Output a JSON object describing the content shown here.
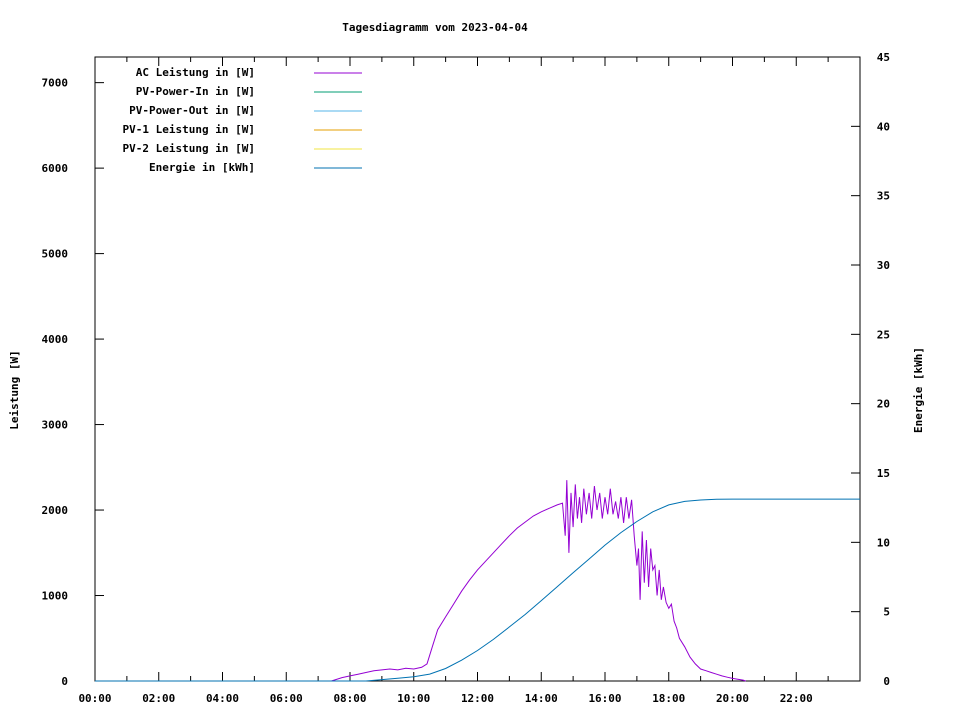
{
  "chart_data": {
    "type": "line",
    "title": "Tagesdiagramm vom 2023-04-04",
    "ylabel": "Leistung [W]",
    "y2label": "Energie [kWh]",
    "xlim": [
      "00:00",
      "24:00"
    ],
    "ylim": [
      0,
      7300
    ],
    "y2lim": [
      0,
      45
    ],
    "x_ticks": [
      "00:00",
      "02:00",
      "04:00",
      "06:00",
      "08:00",
      "10:00",
      "12:00",
      "14:00",
      "16:00",
      "18:00",
      "20:00",
      "22:00"
    ],
    "y_ticks": [
      0,
      1000,
      2000,
      3000,
      4000,
      5000,
      6000,
      7000
    ],
    "y2_ticks": [
      0,
      5,
      10,
      15,
      20,
      25,
      30,
      35,
      40,
      45
    ],
    "grid": false,
    "legend_position": "top-left",
    "series": [
      {
        "name": "AC Leistung in [W]",
        "color": "#9400d3",
        "axis": "left",
        "points": [
          [
            "07:25",
            0
          ],
          [
            "07:45",
            40
          ],
          [
            "08:00",
            60
          ],
          [
            "08:15",
            80
          ],
          [
            "08:30",
            100
          ],
          [
            "08:45",
            120
          ],
          [
            "09:00",
            130
          ],
          [
            "09:15",
            140
          ],
          [
            "09:30",
            130
          ],
          [
            "09:45",
            150
          ],
          [
            "10:00",
            140
          ],
          [
            "10:15",
            160
          ],
          [
            "10:25",
            200
          ],
          [
            "10:35",
            400
          ],
          [
            "10:45",
            600
          ],
          [
            "11:00",
            750
          ],
          [
            "11:15",
            900
          ],
          [
            "11:30",
            1050
          ],
          [
            "11:45",
            1180
          ],
          [
            "12:00",
            1300
          ],
          [
            "12:15",
            1400
          ],
          [
            "12:30",
            1500
          ],
          [
            "12:45",
            1600
          ],
          [
            "13:00",
            1700
          ],
          [
            "13:15",
            1790
          ],
          [
            "13:30",
            1860
          ],
          [
            "13:45",
            1930
          ],
          [
            "14:00",
            1980
          ],
          [
            "14:15",
            2020
          ],
          [
            "14:30",
            2060
          ],
          [
            "14:40",
            2080
          ],
          [
            "14:45",
            1700
          ],
          [
            "14:48",
            2350
          ],
          [
            "14:52",
            1500
          ],
          [
            "14:56",
            2200
          ],
          [
            "15:00",
            1800
          ],
          [
            "15:04",
            2300
          ],
          [
            "15:08",
            1900
          ],
          [
            "15:12",
            2150
          ],
          [
            "15:16",
            1850
          ],
          [
            "15:20",
            2250
          ],
          [
            "15:25",
            1950
          ],
          [
            "15:30",
            2200
          ],
          [
            "15:35",
            1900
          ],
          [
            "15:40",
            2280
          ],
          [
            "15:45",
            2000
          ],
          [
            "15:50",
            2200
          ],
          [
            "15:55",
            1900
          ],
          [
            "16:00",
            2150
          ],
          [
            "16:05",
            1950
          ],
          [
            "16:10",
            2250
          ],
          [
            "16:15",
            1950
          ],
          [
            "16:20",
            2100
          ],
          [
            "16:25",
            1900
          ],
          [
            "16:30",
            2150
          ],
          [
            "16:35",
            1850
          ],
          [
            "16:40",
            2150
          ],
          [
            "16:45",
            1900
          ],
          [
            "16:50",
            2120
          ],
          [
            "16:55",
            1700
          ],
          [
            "17:00",
            1350
          ],
          [
            "17:03",
            1550
          ],
          [
            "17:06",
            950
          ],
          [
            "17:10",
            1750
          ],
          [
            "17:14",
            1150
          ],
          [
            "17:18",
            1650
          ],
          [
            "17:22",
            1100
          ],
          [
            "17:26",
            1550
          ],
          [
            "17:30",
            1300
          ],
          [
            "17:34",
            1350
          ],
          [
            "17:38",
            1000
          ],
          [
            "17:42",
            1300
          ],
          [
            "17:46",
            950
          ],
          [
            "17:50",
            1100
          ],
          [
            "17:55",
            920
          ],
          [
            "18:00",
            850
          ],
          [
            "18:05",
            900
          ],
          [
            "18:10",
            700
          ],
          [
            "18:15",
            620
          ],
          [
            "18:20",
            500
          ],
          [
            "18:30",
            400
          ],
          [
            "18:40",
            280
          ],
          [
            "18:50",
            200
          ],
          [
            "19:00",
            140
          ],
          [
            "19:10",
            120
          ],
          [
            "19:20",
            100
          ],
          [
            "19:30",
            80
          ],
          [
            "19:40",
            60
          ],
          [
            "19:50",
            45
          ],
          [
            "20:00",
            30
          ],
          [
            "20:10",
            20
          ],
          [
            "20:20",
            10
          ],
          [
            "20:25",
            0
          ]
        ]
      },
      {
        "name": "PV-Power-In in [W]",
        "color": "#009e73",
        "axis": "left",
        "points": []
      },
      {
        "name": "PV-Power-Out in [W]",
        "color": "#56b4e9",
        "axis": "left",
        "points": []
      },
      {
        "name": "PV-1 Leistung in [W]",
        "color": "#e69f00",
        "axis": "left",
        "points": []
      },
      {
        "name": "PV-2 Leistung in [W]",
        "color": "#f0e442",
        "axis": "left",
        "points": []
      },
      {
        "name": "Energie in [kWh]",
        "color": "#0072b2",
        "axis": "right",
        "points": [
          [
            "00:00",
            0
          ],
          [
            "08:30",
            0
          ],
          [
            "09:00",
            0.1
          ],
          [
            "09:30",
            0.2
          ],
          [
            "10:00",
            0.3
          ],
          [
            "10:30",
            0.5
          ],
          [
            "11:00",
            0.9
          ],
          [
            "11:30",
            1.5
          ],
          [
            "12:00",
            2.2
          ],
          [
            "12:30",
            3.0
          ],
          [
            "13:00",
            3.9
          ],
          [
            "13:30",
            4.8
          ],
          [
            "14:00",
            5.8
          ],
          [
            "14:30",
            6.8
          ],
          [
            "15:00",
            7.8
          ],
          [
            "15:30",
            8.8
          ],
          [
            "16:00",
            9.8
          ],
          [
            "16:30",
            10.7
          ],
          [
            "17:00",
            11.5
          ],
          [
            "17:30",
            12.2
          ],
          [
            "18:00",
            12.7
          ],
          [
            "18:30",
            12.95
          ],
          [
            "19:00",
            13.05
          ],
          [
            "19:30",
            13.1
          ],
          [
            "20:00",
            13.12
          ],
          [
            "24:00",
            13.12
          ]
        ]
      }
    ]
  }
}
